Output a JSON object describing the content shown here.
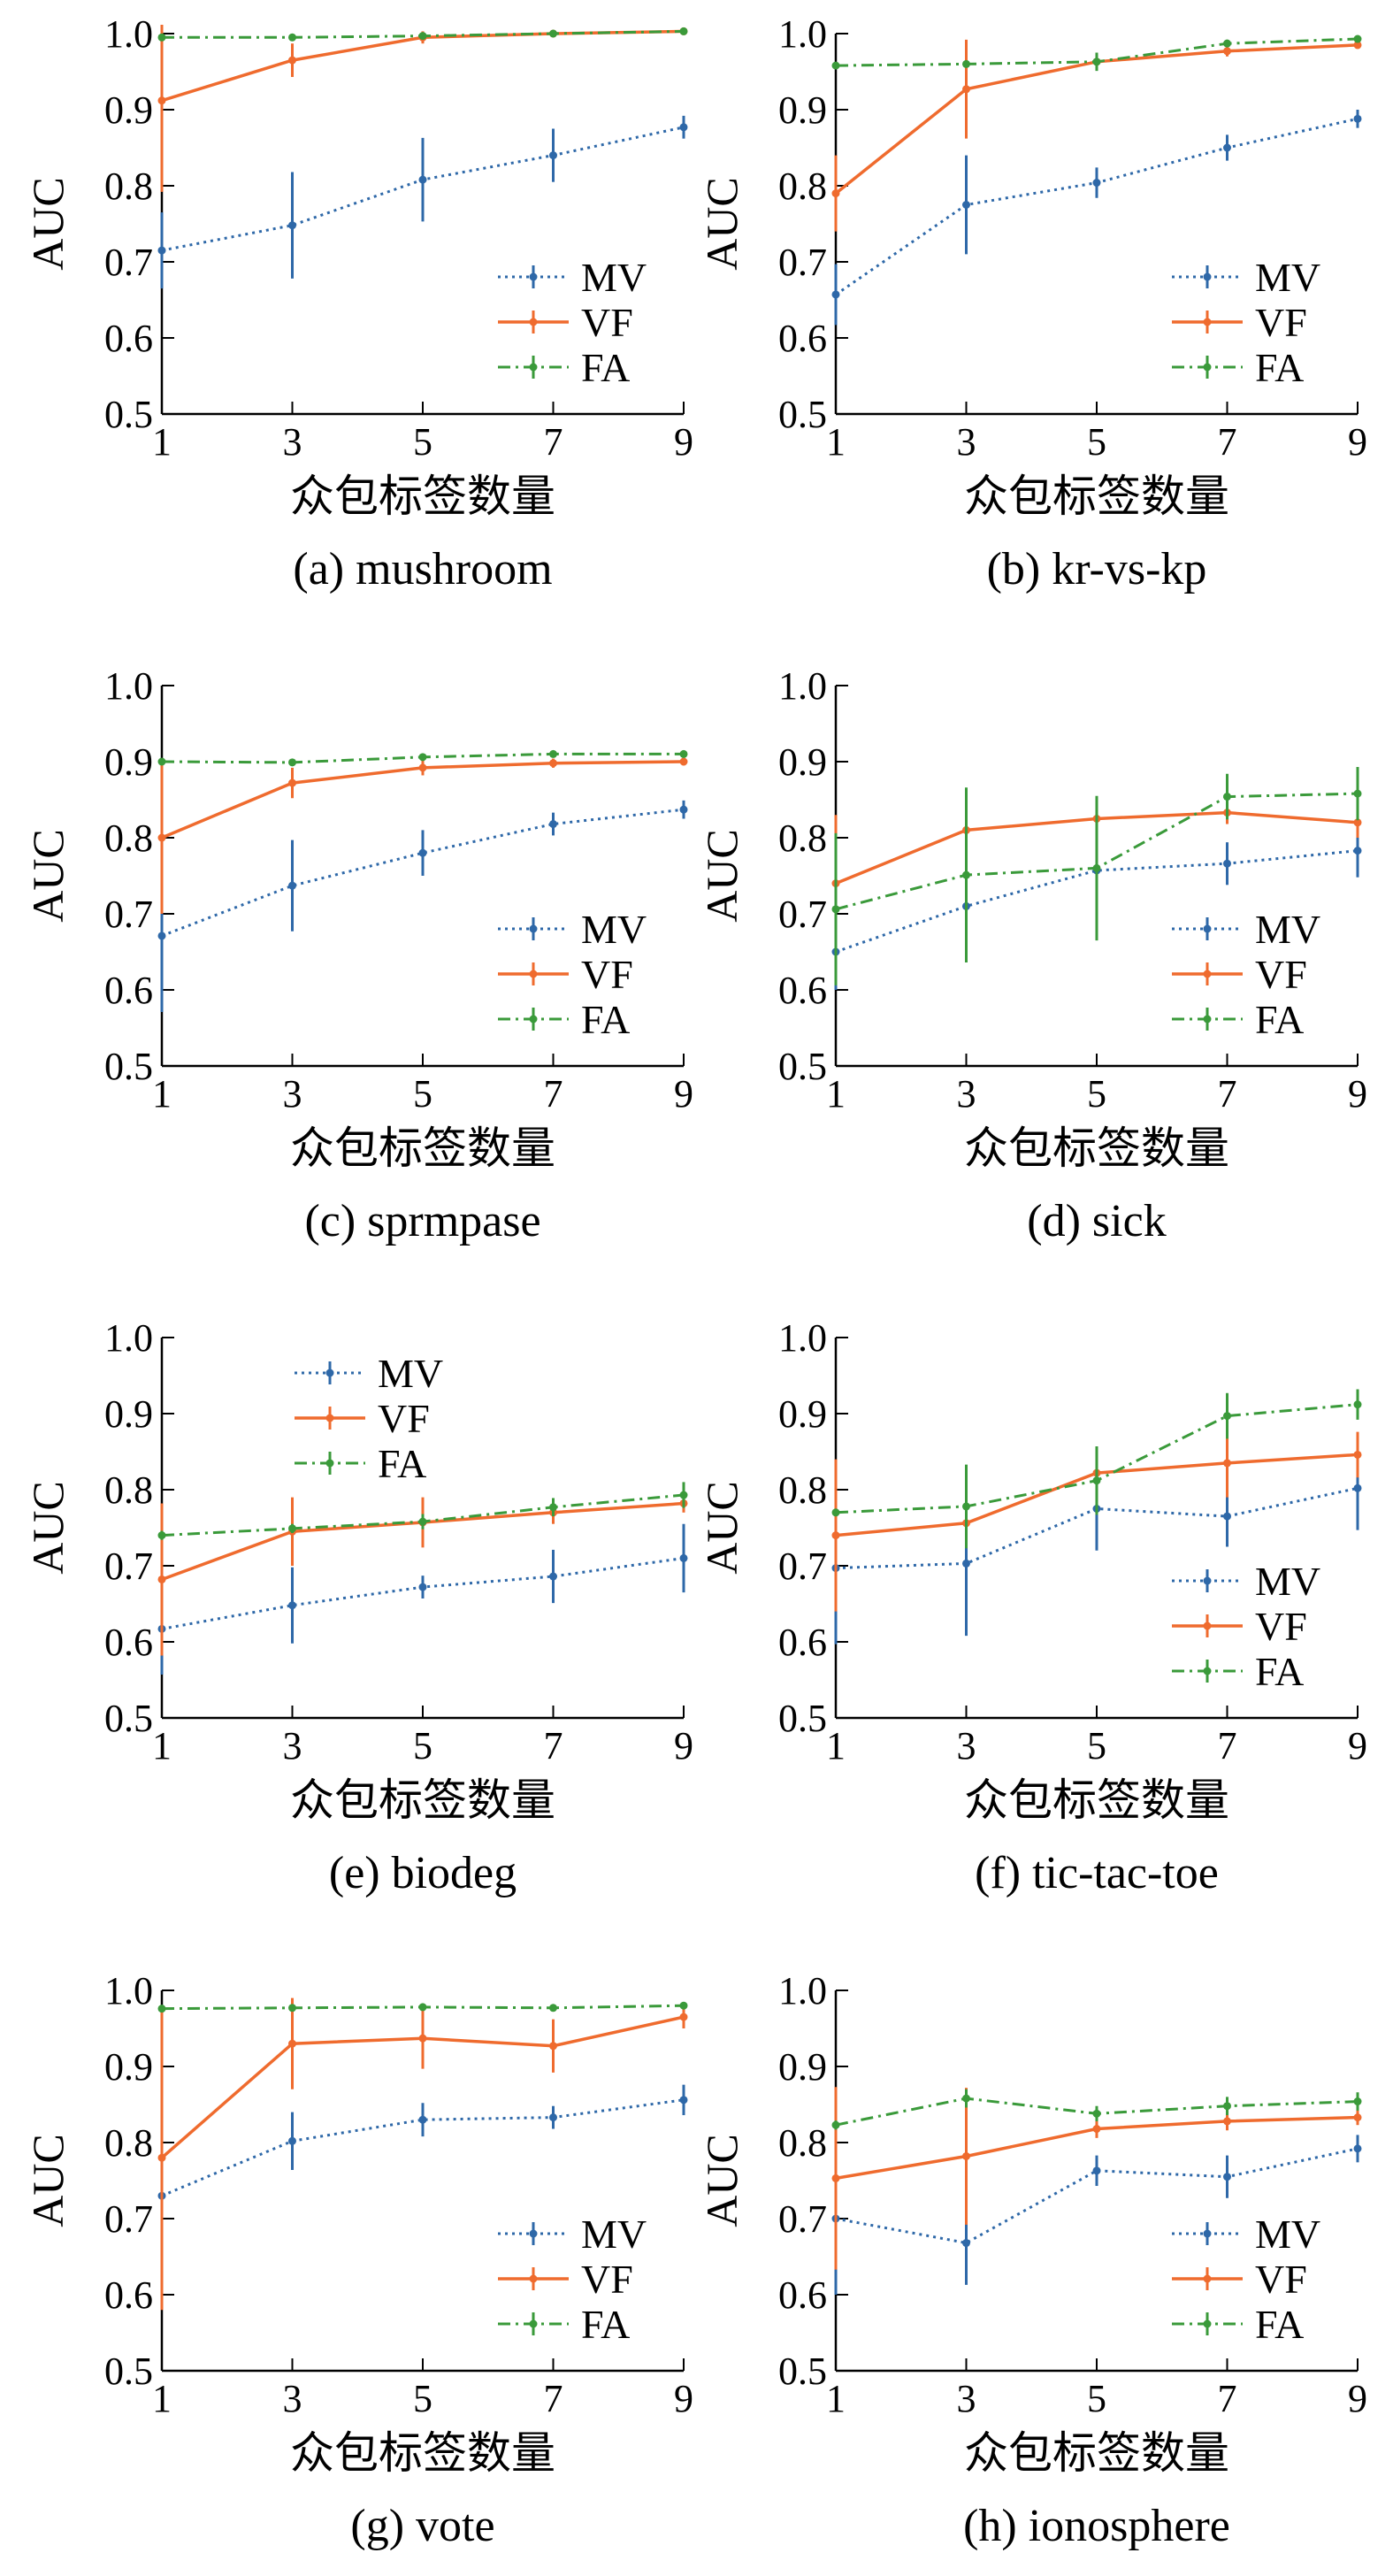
{
  "chart_data": [
    {
      "type": "line",
      "caption": "(a) mushroom",
      "xlabel": "众包标签数量",
      "ylabel": "AUC",
      "x": [
        1,
        3,
        5,
        7,
        9
      ],
      "xlim": [
        1,
        9
      ],
      "ylim": [
        0.5,
        1.0
      ],
      "xticks": [
        "1",
        "3",
        "5",
        "7",
        "9"
      ],
      "yticks": [
        "0.5",
        "0.6",
        "0.7",
        "0.8",
        "0.9",
        "1.0"
      ],
      "legend_position": "bottom-right",
      "series": [
        {
          "name": "MV",
          "color": "#2e68a8",
          "style": "dotted",
          "values": [
            0.715,
            0.748,
            0.808,
            0.84,
            0.877
          ],
          "errors": [
            0.05,
            0.07,
            0.055,
            0.035,
            0.015
          ]
        },
        {
          "name": "VF",
          "color": "#ef6b2e",
          "style": "solid",
          "values": [
            0.912,
            0.965,
            0.995,
            1.0,
            1.003
          ],
          "errors": [
            0.12,
            0.022,
            0.008,
            0.003,
            0.003
          ]
        },
        {
          "name": "FA",
          "color": "#3a9a3a",
          "style": "dashdot",
          "values": [
            0.995,
            0.995,
            0.997,
            1.0,
            1.003
          ],
          "errors": [
            0.004,
            0.003,
            0.002,
            0.002,
            0.002
          ]
        }
      ]
    },
    {
      "type": "line",
      "caption": "(b) kr-vs-kp",
      "xlabel": "众包标签数量",
      "ylabel": "AUC",
      "x": [
        1,
        3,
        5,
        7,
        9
      ],
      "xlim": [
        1,
        9
      ],
      "ylim": [
        0.5,
        1.0
      ],
      "xticks": [
        "1",
        "3",
        "5",
        "7",
        "9"
      ],
      "yticks": [
        "0.5",
        "0.6",
        "0.7",
        "0.8",
        "0.9",
        "1.0"
      ],
      "legend_position": "bottom-right",
      "series": [
        {
          "name": "MV",
          "color": "#2e68a8",
          "style": "dotted",
          "values": [
            0.657,
            0.775,
            0.804,
            0.85,
            0.888
          ],
          "errors": [
            0.04,
            0.065,
            0.02,
            0.017,
            0.012
          ]
        },
        {
          "name": "VF",
          "color": "#ef6b2e",
          "style": "solid",
          "values": [
            0.79,
            0.927,
            0.963,
            0.977,
            0.985
          ],
          "errors": [
            0.05,
            0.065,
            0.01,
            0.007,
            0.005
          ]
        },
        {
          "name": "FA",
          "color": "#3a9a3a",
          "style": "dashdot",
          "values": [
            0.958,
            0.96,
            0.963,
            0.987,
            0.993
          ],
          "errors": [
            0.004,
            0.004,
            0.012,
            0.005,
            0.004
          ]
        }
      ]
    },
    {
      "type": "line",
      "caption": "(c) sprmpase",
      "xlabel": "众包标签数量",
      "ylabel": "AUC",
      "x": [
        1,
        3,
        5,
        7,
        9
      ],
      "xlim": [
        1,
        9
      ],
      "ylim": [
        0.5,
        1.0
      ],
      "xticks": [
        "1",
        "3",
        "5",
        "7",
        "9"
      ],
      "yticks": [
        "0.5",
        "0.6",
        "0.7",
        "0.8",
        "0.9",
        "1.0"
      ],
      "legend_position": "bottom-right",
      "series": [
        {
          "name": "MV",
          "color": "#2e68a8",
          "style": "dotted",
          "values": [
            0.671,
            0.737,
            0.78,
            0.818,
            0.837
          ],
          "errors": [
            0.1,
            0.06,
            0.03,
            0.015,
            0.012
          ]
        },
        {
          "name": "VF",
          "color": "#ef6b2e",
          "style": "solid",
          "values": [
            0.8,
            0.872,
            0.892,
            0.898,
            0.9
          ],
          "errors": [
            0.1,
            0.02,
            0.01,
            0.006,
            0.005
          ]
        },
        {
          "name": "FA",
          "color": "#3a9a3a",
          "style": "dashdot",
          "values": [
            0.9,
            0.899,
            0.906,
            0.91,
            0.91
          ],
          "errors": [
            0.004,
            0.004,
            0.004,
            0.004,
            0.004
          ]
        }
      ]
    },
    {
      "type": "line",
      "caption": "(d) sick",
      "xlabel": "众包标签数量",
      "ylabel": "AUC",
      "x": [
        1,
        3,
        5,
        7,
        9
      ],
      "xlim": [
        1,
        9
      ],
      "ylim": [
        0.5,
        1.0
      ],
      "xticks": [
        "1",
        "3",
        "5",
        "7",
        "9"
      ],
      "yticks": [
        "0.5",
        "0.6",
        "0.7",
        "0.8",
        "0.9",
        "1.0"
      ],
      "legend_position": "bottom-right",
      "series": [
        {
          "name": "MV",
          "color": "#2e68a8",
          "style": "dotted",
          "values": [
            0.65,
            0.71,
            0.757,
            0.766,
            0.783
          ],
          "errors": [
            0.05,
            0.06,
            0.025,
            0.028,
            0.035
          ]
        },
        {
          "name": "VF",
          "color": "#ef6b2e",
          "style": "solid",
          "values": [
            0.74,
            0.81,
            0.825,
            0.833,
            0.82
          ],
          "errors": [
            0.09,
            0.055,
            0.025,
            0.015,
            0.02
          ]
        },
        {
          "name": "FA",
          "color": "#3a9a3a",
          "style": "dashdot",
          "values": [
            0.706,
            0.751,
            0.76,
            0.854,
            0.858
          ],
          "errors": [
            0.1,
            0.115,
            0.095,
            0.03,
            0.035
          ]
        }
      ]
    },
    {
      "type": "line",
      "caption": "(e) biodeg",
      "xlabel": "众包标签数量",
      "ylabel": "AUC",
      "x": [
        1,
        3,
        5,
        7,
        9
      ],
      "xlim": [
        1,
        9
      ],
      "ylim": [
        0.5,
        1.0
      ],
      "xticks": [
        "1",
        "3",
        "5",
        "7",
        "9"
      ],
      "yticks": [
        "0.5",
        "0.6",
        "0.7",
        "0.8",
        "0.9",
        "1.0"
      ],
      "legend_position": "top-center",
      "series": [
        {
          "name": "MV",
          "color": "#2e68a8",
          "style": "dotted",
          "values": [
            0.617,
            0.648,
            0.672,
            0.686,
            0.71
          ],
          "errors": [
            0.06,
            0.05,
            0.015,
            0.035,
            0.045
          ]
        },
        {
          "name": "VF",
          "color": "#ef6b2e",
          "style": "solid",
          "values": [
            0.682,
            0.745,
            0.757,
            0.77,
            0.782
          ],
          "errors": [
            0.1,
            0.045,
            0.033,
            0.015,
            0.012
          ]
        },
        {
          "name": "FA",
          "color": "#3a9a3a",
          "style": "dashdot",
          "values": [
            0.74,
            0.749,
            0.758,
            0.777,
            0.793
          ],
          "errors": [
            0.006,
            0.006,
            0.01,
            0.012,
            0.017
          ]
        }
      ]
    },
    {
      "type": "line",
      "caption": "(f) tic-tac-toe",
      "xlabel": "众包标签数量",
      "ylabel": "AUC",
      "x": [
        1,
        3,
        5,
        7,
        9
      ],
      "xlim": [
        1,
        9
      ],
      "ylim": [
        0.5,
        1.0
      ],
      "xticks": [
        "1",
        "3",
        "5",
        "7",
        "9"
      ],
      "yticks": [
        "0.5",
        "0.6",
        "0.7",
        "0.8",
        "0.9",
        "1.0"
      ],
      "legend_position": "bottom-right",
      "series": [
        {
          "name": "MV",
          "color": "#2e68a8",
          "style": "dotted",
          "values": [
            0.697,
            0.703,
            0.775,
            0.765,
            0.802
          ],
          "errors": [
            0.1,
            0.095,
            0.055,
            0.04,
            0.055
          ]
        },
        {
          "name": "VF",
          "color": "#ef6b2e",
          "style": "solid",
          "values": [
            0.74,
            0.756,
            0.822,
            0.835,
            0.846
          ],
          "errors": [
            0.1,
            0.02,
            0.02,
            0.045,
            0.03
          ]
        },
        {
          "name": "FA",
          "color": "#3a9a3a",
          "style": "dashdot",
          "values": [
            0.77,
            0.778,
            0.812,
            0.897,
            0.912
          ],
          "errors": [
            0.005,
            0.055,
            0.045,
            0.03,
            0.02
          ]
        }
      ]
    },
    {
      "type": "line",
      "caption": "(g) vote",
      "xlabel": "众包标签数量",
      "ylabel": "AUC",
      "x": [
        1,
        3,
        5,
        7,
        9
      ],
      "xlim": [
        1,
        9
      ],
      "ylim": [
        0.5,
        1.0
      ],
      "xticks": [
        "1",
        "3",
        "5",
        "7",
        "9"
      ],
      "yticks": [
        "0.5",
        "0.6",
        "0.7",
        "0.8",
        "0.9",
        "1.0"
      ],
      "legend_position": "bottom-right",
      "series": [
        {
          "name": "MV",
          "color": "#2e68a8",
          "style": "dotted",
          "values": [
            0.73,
            0.802,
            0.83,
            0.833,
            0.856
          ],
          "errors": [
            0.1,
            0.038,
            0.022,
            0.015,
            0.02
          ]
        },
        {
          "name": "VF",
          "color": "#ef6b2e",
          "style": "solid",
          "values": [
            0.78,
            0.93,
            0.937,
            0.927,
            0.965
          ],
          "errors": [
            0.2,
            0.06,
            0.04,
            0.035,
            0.015
          ]
        },
        {
          "name": "FA",
          "color": "#3a9a3a",
          "style": "dashdot",
          "values": [
            0.976,
            0.977,
            0.978,
            0.977,
            0.98
          ],
          "errors": [
            0.005,
            0.004,
            0.004,
            0.004,
            0.004
          ]
        }
      ]
    },
    {
      "type": "line",
      "caption": "(h) ionosphere",
      "xlabel": "众包标签数量",
      "ylabel": "AUC",
      "x": [
        1,
        3,
        5,
        7,
        9
      ],
      "xlim": [
        1,
        9
      ],
      "ylim": [
        0.5,
        1.0
      ],
      "xticks": [
        "1",
        "3",
        "5",
        "7",
        "9"
      ],
      "yticks": [
        "0.5",
        "0.6",
        "0.7",
        "0.8",
        "0.9",
        "1.0"
      ],
      "legend_position": "bottom-right",
      "series": [
        {
          "name": "MV",
          "color": "#2e68a8",
          "style": "dotted",
          "values": [
            0.7,
            0.668,
            0.763,
            0.755,
            0.792
          ],
          "errors": [
            0.1,
            0.055,
            0.02,
            0.028,
            0.018
          ]
        },
        {
          "name": "VF",
          "color": "#ef6b2e",
          "style": "solid",
          "values": [
            0.753,
            0.782,
            0.818,
            0.828,
            0.833
          ],
          "errors": [
            0.12,
            0.09,
            0.012,
            0.012,
            0.01
          ]
        },
        {
          "name": "FA",
          "color": "#3a9a3a",
          "style": "dashdot",
          "values": [
            0.823,
            0.858,
            0.838,
            0.848,
            0.854
          ],
          "errors": [
            0.006,
            0.012,
            0.01,
            0.012,
            0.012
          ]
        }
      ]
    }
  ]
}
